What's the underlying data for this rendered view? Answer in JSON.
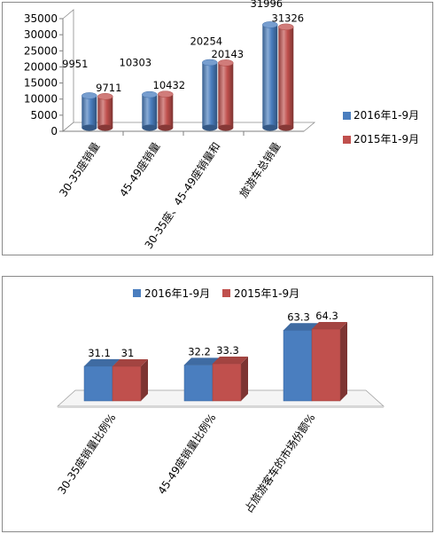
{
  "colors": {
    "series_2016": "#4a7ebf",
    "series_2015": "#c0504d"
  },
  "chart_data": [
    {
      "type": "bar",
      "title": "",
      "categories": [
        "30-35座销量",
        "45-49座销量",
        "30-35座、45-49座销量和",
        "旅游车总销量"
      ],
      "series": [
        {
          "name": "2016年1-9月",
          "values": [
            9951,
            10303,
            20254,
            31996
          ]
        },
        {
          "name": "2015年1-9月",
          "values": [
            9711,
            10432,
            20143,
            31326
          ]
        }
      ],
      "yticks": [
        "0",
        "5000",
        "10000",
        "15000",
        "20000",
        "25000",
        "30000",
        "35000"
      ],
      "ylim": [
        0,
        35000
      ],
      "legend": "right",
      "grid": false
    },
    {
      "type": "bar",
      "title": "",
      "categories": [
        "30-35座销量比例%",
        "45-49座销量比例%",
        "占旅游客车的市场份额%"
      ],
      "series": [
        {
          "name": "2016年1-9月",
          "values": [
            31.1,
            32.2,
            63.3
          ]
        },
        {
          "name": "2015年1-9月",
          "values": [
            31,
            33.3,
            64.3
          ]
        }
      ],
      "legend": "top",
      "grid": false
    }
  ]
}
